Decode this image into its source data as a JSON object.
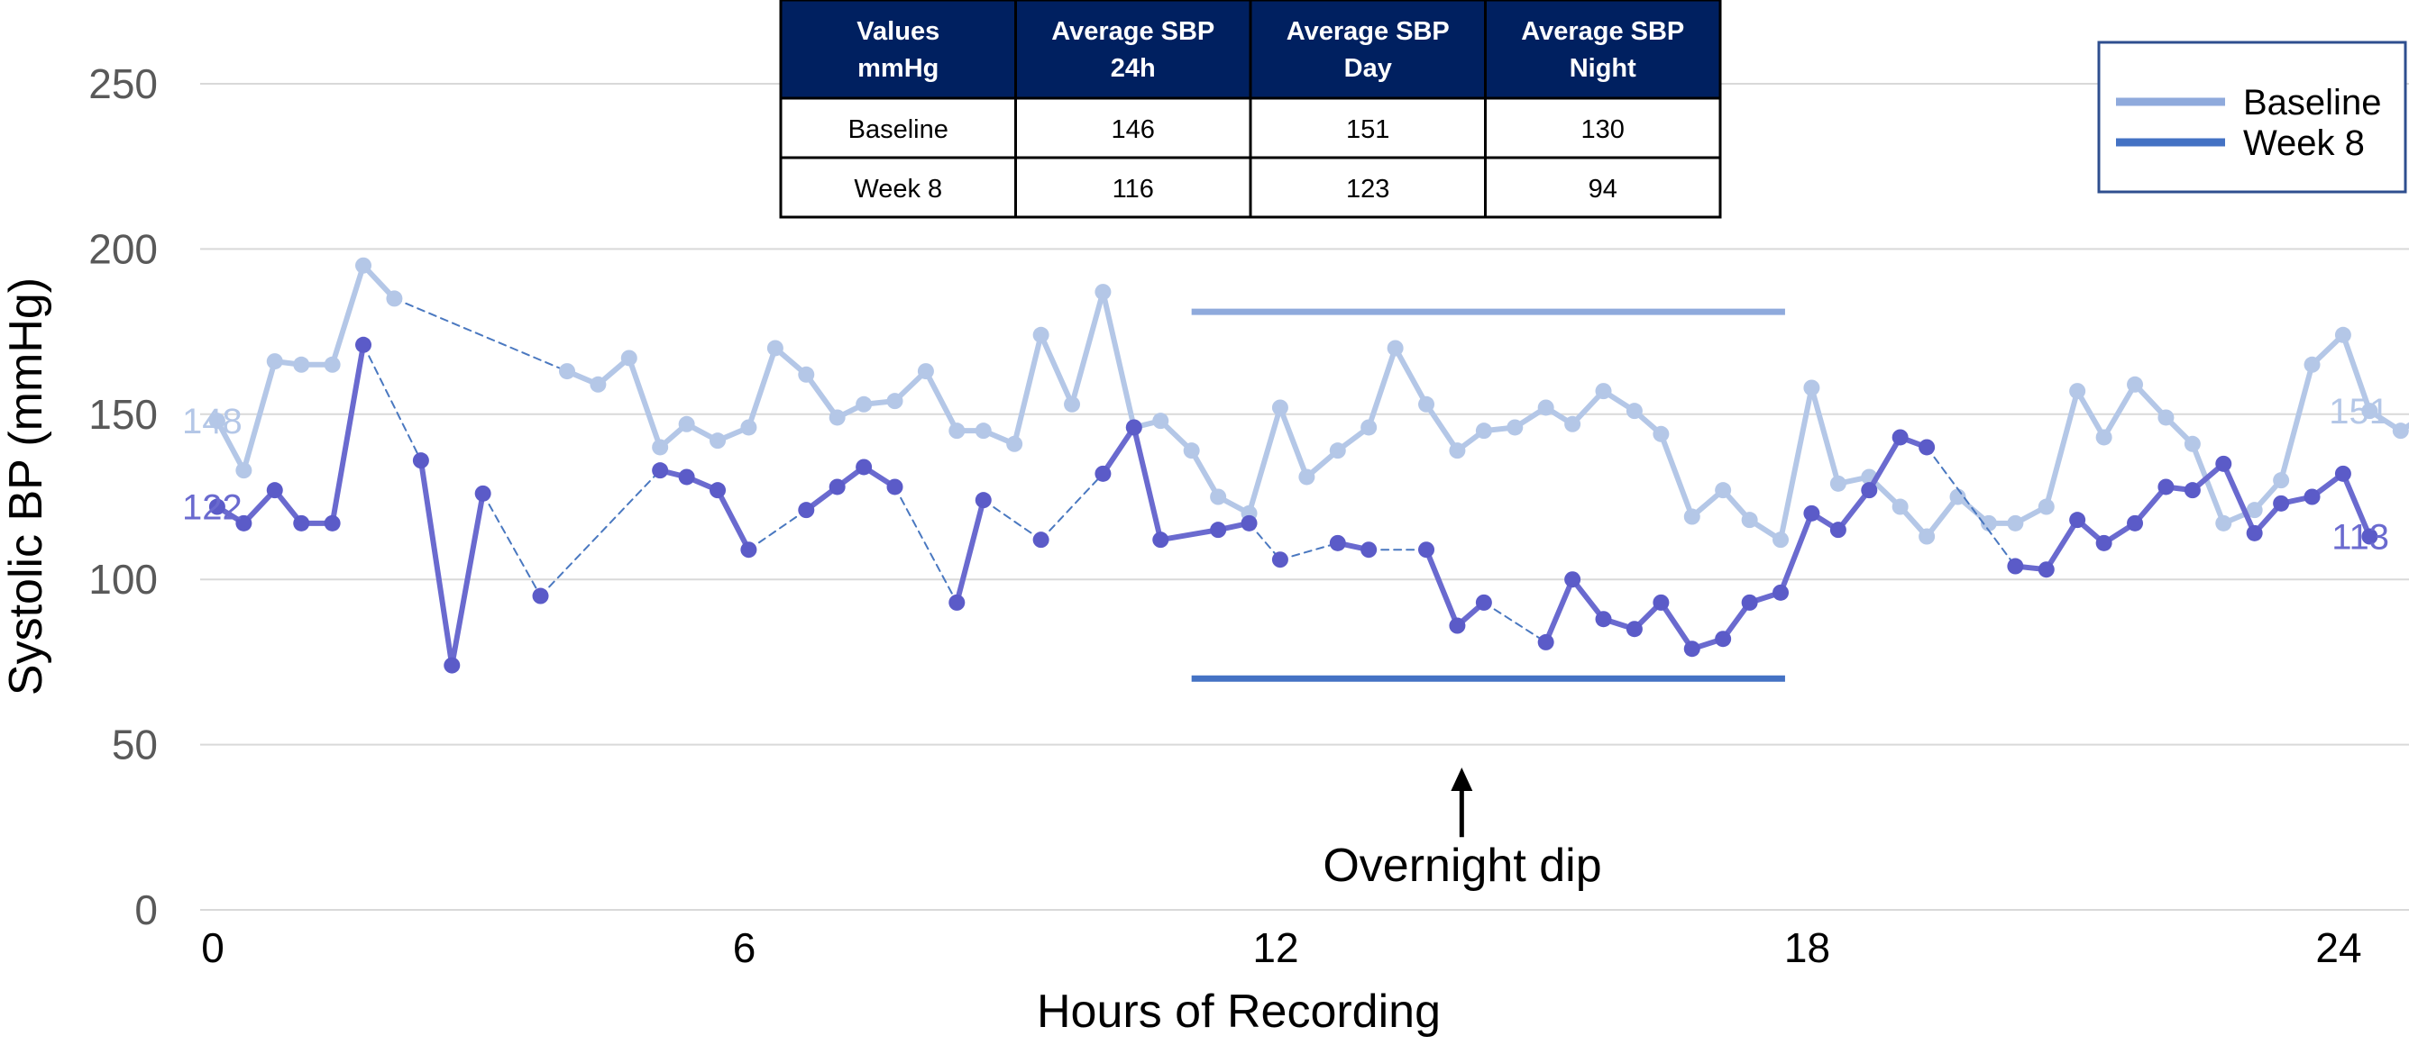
{
  "chart_data": {
    "type": "line",
    "xlabel": "Hours of Recording",
    "ylabel": "Systolic BP (mmHg)",
    "xlim": [
      0,
      24
    ],
    "ylim": [
      0,
      250
    ],
    "x_ticks": [
      "0",
      "6",
      "12",
      "18",
      "24"
    ],
    "y_ticks": [
      "0",
      "50",
      "100",
      "150",
      "200",
      "250"
    ],
    "grid": "horizontal",
    "legend": {
      "position": "top-right",
      "entries": [
        "Baseline",
        "Week 8"
      ]
    },
    "series": [
      {
        "name": "Baseline",
        "color": "#b4c7e7",
        "points": [
          [
            0.05,
            148
          ],
          [
            0.35,
            133
          ],
          [
            0.7,
            166
          ],
          [
            1.0,
            165
          ],
          [
            1.35,
            165
          ],
          [
            1.7,
            195
          ],
          [
            2.05,
            185
          ],
          [
            4.0,
            163
          ],
          [
            4.35,
            159
          ],
          [
            4.7,
            167
          ],
          [
            5.05,
            140
          ],
          [
            5.35,
            147
          ],
          [
            5.7,
            142
          ],
          [
            6.05,
            146
          ],
          [
            6.35,
            170
          ],
          [
            6.7,
            162
          ],
          [
            7.05,
            149
          ],
          [
            7.35,
            153
          ],
          [
            7.7,
            154
          ],
          [
            8.05,
            163
          ],
          [
            8.4,
            145
          ],
          [
            8.7,
            145
          ],
          [
            9.05,
            141
          ],
          [
            9.35,
            174
          ],
          [
            9.7,
            153
          ],
          [
            10.05,
            187
          ],
          [
            10.4,
            146
          ],
          [
            10.7,
            148
          ],
          [
            11.05,
            139
          ],
          [
            11.35,
            125
          ],
          [
            11.7,
            120
          ],
          [
            12.05,
            152
          ],
          [
            12.35,
            131
          ],
          [
            12.7,
            139
          ],
          [
            13.05,
            146
          ],
          [
            13.35,
            170
          ],
          [
            13.7,
            153
          ],
          [
            14.05,
            139
          ],
          [
            14.35,
            145
          ],
          [
            14.7,
            146
          ],
          [
            15.05,
            152
          ],
          [
            15.35,
            147
          ],
          [
            15.7,
            157
          ],
          [
            16.05,
            151
          ],
          [
            16.35,
            144
          ],
          [
            16.7,
            119
          ],
          [
            17.05,
            127
          ],
          [
            17.35,
            118
          ],
          [
            17.7,
            112
          ],
          [
            18.05,
            158
          ],
          [
            18.35,
            129
          ],
          [
            18.7,
            131
          ],
          [
            19.05,
            122
          ],
          [
            19.35,
            113
          ],
          [
            19.7,
            125
          ],
          [
            20.05,
            117
          ],
          [
            20.35,
            117
          ],
          [
            20.7,
            122
          ],
          [
            21.05,
            157
          ],
          [
            21.35,
            143
          ],
          [
            21.7,
            159
          ],
          [
            22.05,
            149
          ],
          [
            22.35,
            141
          ],
          [
            22.7,
            117
          ],
          [
            23.05,
            121
          ],
          [
            23.35,
            130
          ],
          [
            23.7,
            165
          ],
          [
            24.05,
            174
          ],
          [
            24.35,
            151
          ],
          [
            24.7,
            145
          ],
          [
            25.05,
            151
          ]
        ],
        "gaps": [
          [
            2.05,
            4.0
          ]
        ],
        "start_label": "148",
        "end_label": "151"
      },
      {
        "name": "Week 8",
        "color": "#6a6acf",
        "points": [
          [
            0.05,
            122
          ],
          [
            0.35,
            117
          ],
          [
            0.7,
            127
          ],
          [
            1.0,
            117
          ],
          [
            1.35,
            117
          ],
          [
            1.7,
            171
          ],
          [
            2.35,
            136
          ],
          [
            2.7,
            74
          ],
          [
            3.05,
            126
          ],
          [
            3.7,
            95
          ],
          [
            5.05,
            133
          ],
          [
            5.35,
            131
          ],
          [
            5.7,
            127
          ],
          [
            6.05,
            109
          ],
          [
            6.7,
            121
          ],
          [
            7.05,
            128
          ],
          [
            7.35,
            134
          ],
          [
            7.7,
            128
          ],
          [
            8.4,
            93
          ],
          [
            8.7,
            124
          ],
          [
            9.35,
            112
          ],
          [
            10.05,
            132
          ],
          [
            10.4,
            146
          ],
          [
            10.7,
            112
          ],
          [
            11.35,
            115
          ],
          [
            11.7,
            117
          ],
          [
            12.05,
            106
          ],
          [
            12.7,
            111
          ],
          [
            13.05,
            109
          ],
          [
            13.7,
            109
          ],
          [
            14.05,
            86
          ],
          [
            14.35,
            93
          ],
          [
            15.05,
            81
          ],
          [
            15.35,
            100
          ],
          [
            15.7,
            88
          ],
          [
            16.05,
            85
          ],
          [
            16.35,
            93
          ],
          [
            16.7,
            79
          ],
          [
            17.05,
            82
          ],
          [
            17.35,
            93
          ],
          [
            17.7,
            96
          ],
          [
            18.05,
            120
          ],
          [
            18.35,
            115
          ],
          [
            18.7,
            127
          ],
          [
            19.05,
            143
          ],
          [
            19.35,
            140
          ],
          [
            20.35,
            104
          ],
          [
            20.7,
            103
          ],
          [
            21.05,
            118
          ],
          [
            21.35,
            111
          ],
          [
            21.7,
            117
          ],
          [
            22.05,
            128
          ],
          [
            22.35,
            127
          ],
          [
            22.7,
            135
          ],
          [
            23.05,
            114
          ],
          [
            23.35,
            123
          ],
          [
            23.7,
            125
          ],
          [
            24.05,
            132
          ],
          [
            24.35,
            113
          ]
        ],
        "gaps": [
          [
            1.7,
            2.35
          ],
          [
            3.05,
            3.7
          ],
          [
            3.7,
            5.05
          ],
          [
            6.05,
            6.7
          ],
          [
            7.7,
            8.4
          ],
          [
            8.7,
            9.35
          ],
          [
            9.35,
            10.05
          ],
          [
            11.7,
            12.05
          ],
          [
            12.05,
            12.7
          ],
          [
            13.05,
            13.7
          ],
          [
            14.35,
            15.05
          ],
          [
            19.35,
            20.35
          ]
        ],
        "start_label": "122",
        "end_label": "113"
      }
    ],
    "reference_lines": [
      {
        "y": 181,
        "x_start": 11.05,
        "x_end": 17.75,
        "color": "#8faadc"
      },
      {
        "y": 70,
        "x_start": 11.05,
        "x_end": 17.75,
        "color": "#4472c4"
      }
    ],
    "annotation": {
      "text": "Overnight dip",
      "x": 14.1,
      "y_from": 22,
      "y_to": 42
    },
    "table": {
      "headers": [
        "Values\nmmHg",
        "Average SBP\n24h",
        "Average SBP\nDay",
        "Average SBP\nNight"
      ],
      "rows": [
        [
          "Baseline",
          "146",
          "151",
          "130"
        ],
        [
          "Week 8",
          "116",
          "123",
          "94"
        ]
      ]
    }
  },
  "colors": {
    "baseline_line": "#b4c7e7",
    "baseline_dot": "#b4c7e7",
    "week8_line": "#6a6acf",
    "week8_dot": "#5b5bc8",
    "table_header_bg": "#002060",
    "legend_baseline": "#8faadc",
    "legend_week8": "#4472c4",
    "grid": "#d9d9d9"
  }
}
